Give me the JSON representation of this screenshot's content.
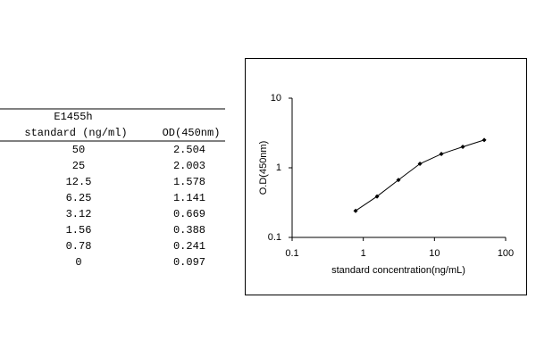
{
  "table": {
    "header": {
      "title": "E1455h",
      "columns": [
        "standard (ng/ml)",
        "OD(450nm)"
      ]
    },
    "rows": [
      [
        "50",
        "2.504"
      ],
      [
        "25",
        "2.003"
      ],
      [
        "12.5",
        "1.578"
      ],
      [
        "6.25",
        "1.141"
      ],
      [
        "3.12",
        "0.669"
      ],
      [
        "1.56",
        "0.388"
      ],
      [
        "0.78",
        "0.241"
      ],
      [
        "0",
        "0.097"
      ]
    ]
  },
  "chart_data": {
    "type": "line",
    "x_label": "standard concentration(ng/mL)",
    "y_label": "O.D(450nm)",
    "x": [
      0.78,
      1.56,
      3.12,
      6.25,
      12.5,
      25,
      50
    ],
    "series": [
      {
        "color": "#000000",
        "values": [
          0.241,
          0.388,
          0.669,
          1.141,
          1.578,
          2.003,
          2.504
        ]
      }
    ],
    "xlim": [
      0.1,
      100
    ],
    "ylim": [
      0.1,
      10
    ],
    "xticks": [
      0.1,
      1,
      10,
      100
    ],
    "yticks": [
      0.1,
      1,
      10
    ],
    "x_log": true,
    "y_log": true,
    "grid": false
  }
}
